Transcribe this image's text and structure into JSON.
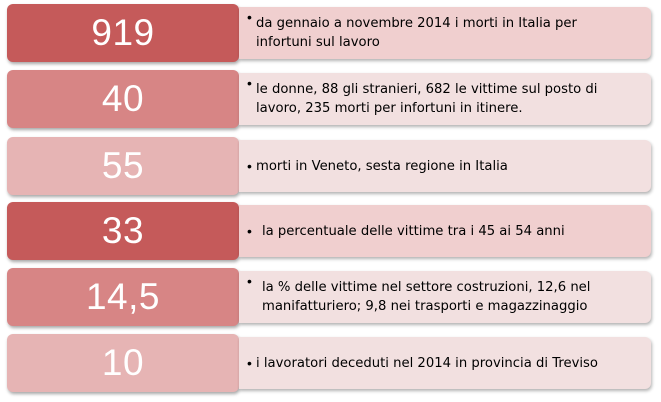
{
  "colors": {
    "dark_num": "#c55a5a",
    "mid_num": "#d78585",
    "light_num": "#e6b4b4",
    "dark_desc": "#f0cfcf",
    "light_desc": "#f2e0e0"
  },
  "rows": [
    {
      "number": "919",
      "lines": [
        "da gennaio  a novembre 2014 i morti in Italia per",
        "infortuni sul lavoro"
      ]
    },
    {
      "number": "40",
      "lines": [
        "le donne, 88 gli stranieri, 682 le vittime sul posto di",
        "lavoro, 235 morti per infortuni in itinere."
      ]
    },
    {
      "number": "55",
      "lines": [
        "morti in Veneto, sesta regione  in Italia"
      ]
    },
    {
      "number": "33",
      "lines": [
        "la percentuale  delle  vittime tra i 45 ai 54 anni"
      ]
    },
    {
      "number": "14,5",
      "lines": [
        "la % delle vittime nel settore costruzioni, 12,6 nel",
        "manifatturiero; 9,8 nei trasporti e magazzinaggio"
      ]
    },
    {
      "number": "10",
      "lines": [
        "i lavoratori deceduti  nel 2014 in provincia di Treviso"
      ]
    }
  ]
}
